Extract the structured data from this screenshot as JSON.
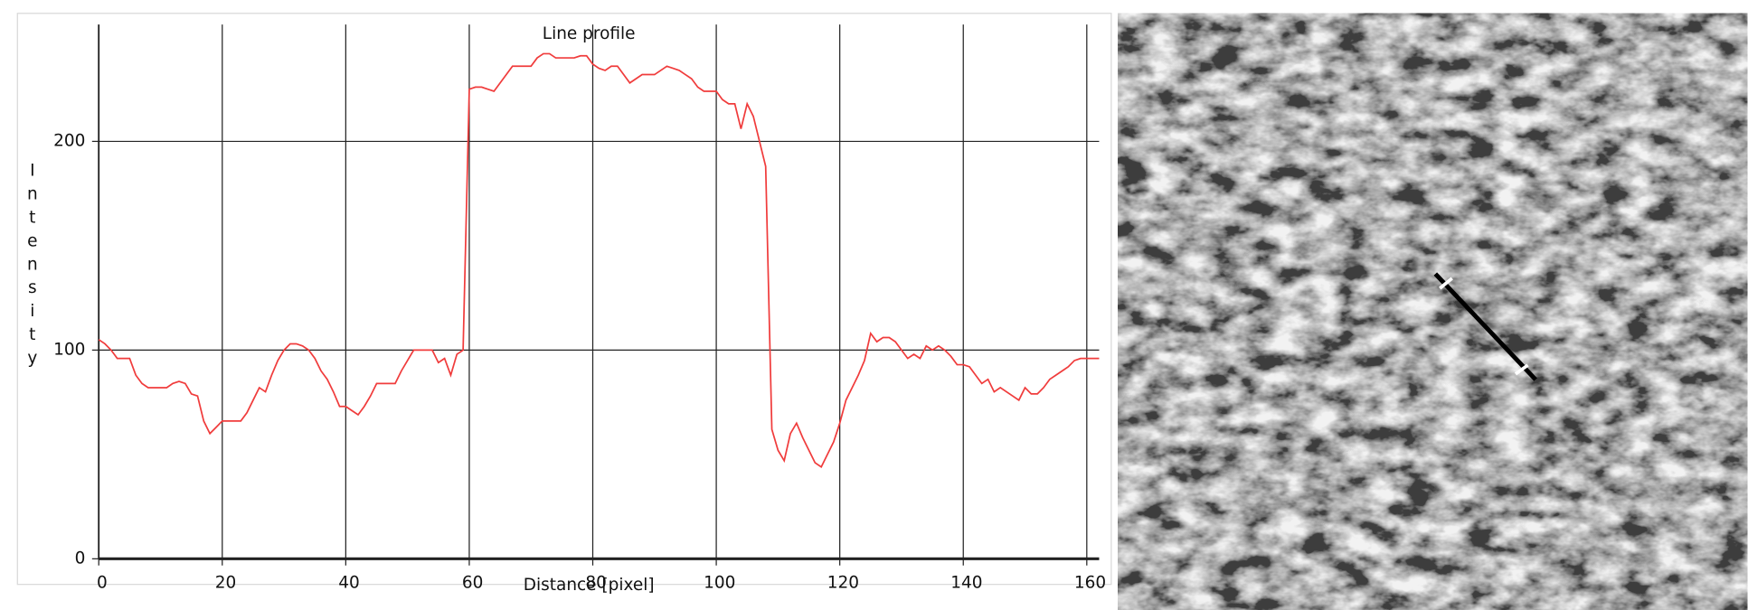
{
  "chart_data": {
    "type": "line",
    "title": "Line profile",
    "xlabel": "Distance  [pixel]",
    "ylabel": "Intensity",
    "x": [
      0,
      1,
      2,
      3,
      4,
      5,
      6,
      7,
      8,
      9,
      10,
      11,
      12,
      13,
      14,
      15,
      16,
      17,
      18,
      19,
      20,
      21,
      22,
      23,
      24,
      25,
      26,
      27,
      28,
      29,
      30,
      31,
      32,
      33,
      34,
      35,
      36,
      37,
      38,
      39,
      40,
      41,
      42,
      43,
      44,
      45,
      46,
      47,
      48,
      49,
      50,
      51,
      52,
      53,
      54,
      55,
      56,
      57,
      58,
      59,
      60,
      61,
      62,
      63,
      64,
      65,
      66,
      67,
      68,
      69,
      70,
      71,
      72,
      73,
      74,
      75,
      76,
      77,
      78,
      79,
      80,
      81,
      82,
      83,
      84,
      85,
      86,
      87,
      88,
      89,
      90,
      91,
      92,
      93,
      94,
      95,
      96,
      97,
      98,
      99,
      100,
      101,
      102,
      103,
      104,
      105,
      106,
      107,
      108,
      109,
      110,
      111,
      112,
      113,
      114,
      115,
      116,
      117,
      118,
      119,
      120,
      121,
      122,
      123,
      124,
      125,
      126,
      127,
      128,
      129,
      130,
      131,
      132,
      133,
      134,
      135,
      136,
      137,
      138,
      139,
      140,
      141,
      142,
      143,
      144,
      145,
      146,
      147,
      148,
      149,
      150,
      151,
      152,
      153,
      154,
      155,
      156,
      157,
      158,
      159,
      160,
      161,
      162
    ],
    "values": [
      105,
      103,
      100,
      96,
      96,
      96,
      88,
      84,
      82,
      82,
      82,
      82,
      84,
      85,
      84,
      79,
      78,
      66,
      60,
      63,
      66,
      66,
      66,
      66,
      70,
      76,
      82,
      80,
      88,
      95,
      100,
      103,
      103,
      102,
      100,
      96,
      90,
      86,
      80,
      73,
      73,
      71,
      69,
      73,
      78,
      84,
      84,
      84,
      84,
      90,
      95,
      100,
      100,
      100,
      100,
      94,
      96,
      88,
      98,
      100,
      225,
      226,
      226,
      225,
      224,
      228,
      232,
      236,
      236,
      236,
      236,
      240,
      242,
      242,
      240,
      240,
      240,
      240,
      241,
      241,
      237,
      235,
      234,
      236,
      236,
      232,
      228,
      230,
      232,
      232,
      232,
      234,
      236,
      235,
      234,
      232,
      230,
      226,
      224,
      224,
      224,
      220,
      218,
      218,
      206,
      218,
      212,
      200,
      188,
      62,
      52,
      47,
      60,
      65,
      58,
      52,
      46,
      44,
      50,
      56,
      65,
      76,
      82,
      88,
      95,
      108,
      104,
      106,
      106,
      104,
      100,
      96,
      98,
      96,
      102,
      100,
      102,
      100,
      97,
      93,
      93,
      92,
      88,
      84,
      86,
      80,
      82,
      80,
      78,
      76,
      82,
      79,
      79,
      82,
      86,
      88,
      90,
      92,
      95,
      96,
      96,
      96,
      96
    ],
    "color": "#f03c3c",
    "xlim": [
      0,
      162
    ],
    "ylim": [
      0,
      256
    ],
    "xticks": [
      0,
      20,
      40,
      60,
      80,
      100,
      120,
      140,
      160
    ],
    "yticks": [
      0,
      100,
      200
    ],
    "grid": true
  }
}
